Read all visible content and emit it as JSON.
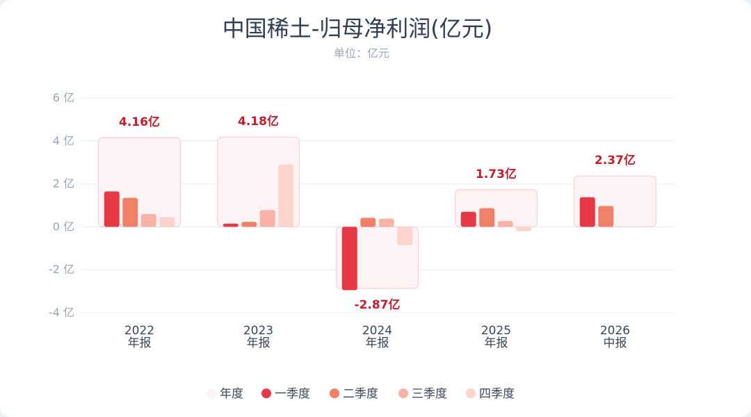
{
  "chart_data": {
    "type": "bar",
    "title": "中国稀土-归母净利润(亿元)",
    "subtitle": "单位：亿元",
    "ylim": [
      -4,
      6
    ],
    "yticks": [
      {
        "value": 6,
        "label": "6 亿"
      },
      {
        "value": 4,
        "label": "4 亿"
      },
      {
        "value": 2,
        "label": "2 亿"
      },
      {
        "value": 0,
        "label": "0 亿"
      },
      {
        "value": -2,
        "label": "-2 亿"
      },
      {
        "value": -4,
        "label": "-4 亿"
      }
    ],
    "grid": true,
    "legend_position": "bottom",
    "colors": {
      "annual_fill": "#fcf3f4",
      "annual_stroke": "#f6d2d6",
      "annual_legend": "#fdf2f3",
      "q1": "#e63946",
      "q2": "#f08068",
      "q3": "#f9b2a6",
      "q4": "#fdd3cd",
      "label": "#c0202e"
    },
    "categories": [
      {
        "year": "2022",
        "period": "年报",
        "annual": 4.16,
        "annual_label": "4.16亿",
        "quarters": [
          1.65,
          1.35,
          0.6,
          0.45
        ]
      },
      {
        "year": "2023",
        "period": "年报",
        "annual": 4.18,
        "annual_label": "4.18亿",
        "quarters": [
          0.15,
          0.23,
          0.78,
          2.9
        ]
      },
      {
        "year": "2024",
        "period": "年报",
        "annual": -2.87,
        "annual_label": "-2.87亿",
        "quarters": [
          -2.95,
          0.42,
          0.38,
          -0.85
        ]
      },
      {
        "year": "2025",
        "period": "年报",
        "annual": 1.73,
        "annual_label": "1.73亿",
        "quarters": [
          0.7,
          0.87,
          0.27,
          -0.2
        ]
      },
      {
        "year": "2026",
        "period": "中报",
        "annual": 2.37,
        "annual_label": "2.37亿",
        "quarters": [
          1.38,
          0.97,
          null,
          null
        ]
      }
    ],
    "legend": [
      {
        "key": "annual",
        "label": "年度"
      },
      {
        "key": "q1",
        "label": "一季度"
      },
      {
        "key": "q2",
        "label": "二季度"
      },
      {
        "key": "q3",
        "label": "三季度"
      },
      {
        "key": "q4",
        "label": "四季度"
      }
    ]
  }
}
